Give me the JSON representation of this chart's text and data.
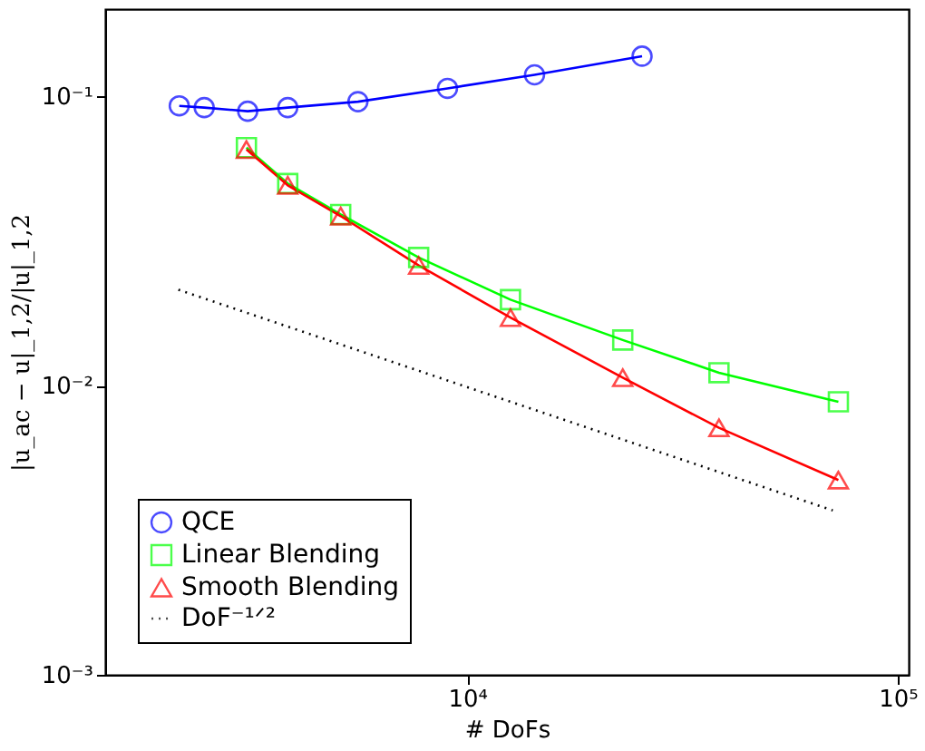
{
  "chart_data": {
    "type": "line",
    "xlabel": "# DoFs",
    "ylabel": "|u_ac − u|_1,2/|u|_1,2",
    "log": "xy",
    "grid": false,
    "legend": "bottom left",
    "xlim": [
      1442,
      106000
    ],
    "ylim": [
      0.001,
      0.2
    ],
    "xticks": [
      {
        "value": 10000,
        "label": "10⁴"
      },
      {
        "value": 100000,
        "label": "10⁵"
      }
    ],
    "yticks": [
      {
        "value": 0.001,
        "label": "10⁻³"
      },
      {
        "value": 0.01,
        "label": "10⁻²"
      },
      {
        "value": 0.1,
        "label": "10⁻¹"
      }
    ],
    "series": [
      {
        "name": "QCE",
        "color": "#0000ff",
        "marker": "circle",
        "line_style": "solid",
        "x": [
          2143,
          2449,
          3090,
          3828,
          5572,
          8995,
          14330,
          25470
        ],
        "values": [
          0.0926,
          0.0913,
          0.0887,
          0.0913,
          0.0957,
          0.1064,
          0.1185,
          0.1375
        ]
      },
      {
        "name": "Linear Blending",
        "color": "#00ff00",
        "marker": "square",
        "line_style": "solid",
        "x": [
          3069,
          3828,
          5082,
          7711,
          12600,
          22970,
          38430,
          72780
        ],
        "values": [
          0.0664,
          0.0499,
          0.039,
          0.0277,
          0.0198,
          0.01436,
          0.01107,
          0.00878
        ]
      },
      {
        "name": "Smooth Blending",
        "color": "#ff0000",
        "marker": "triangle",
        "line_style": "solid",
        "x": [
          3069,
          3828,
          5082,
          7711,
          12600,
          22970,
          38430,
          72780
        ],
        "values": [
          0.0654,
          0.0492,
          0.0385,
          0.026,
          0.01717,
          0.01064,
          0.00714,
          0.00471
        ]
      },
      {
        "name": "DoF⁻¹ᐟ²",
        "color": "#000000",
        "marker": "none",
        "line_style": "dotted",
        "x": [
          2133,
          70630
        ],
        "values": [
          0.02143,
          0.0037
        ]
      }
    ]
  }
}
